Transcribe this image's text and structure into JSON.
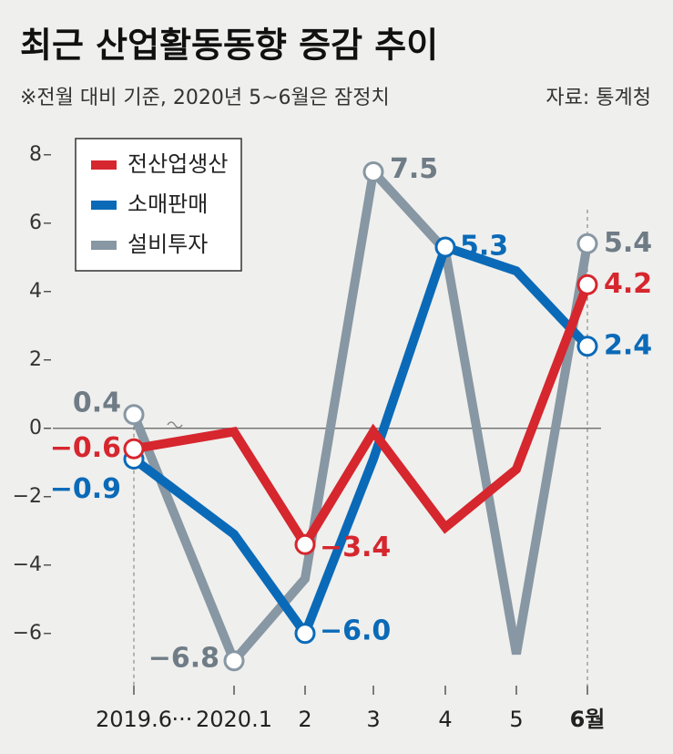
{
  "chart_data": {
    "type": "line",
    "title": "최근 산업활동동향 증감 추이",
    "subtitle": "※전월 대비 기준, 2020년 5~6월은 잠정치",
    "source": "자료: 통계청",
    "categories": [
      "2019.6",
      "2020.1",
      "2",
      "3",
      "4",
      "5",
      "6월"
    ],
    "axis_break_label": "···",
    "series": [
      {
        "name": "전산업생산",
        "color": "#d6262e",
        "values": [
          -0.6,
          -0.1,
          -3.4,
          -0.1,
          -2.9,
          -1.2,
          4.2
        ],
        "value_labels": [
          "−0.6",
          null,
          "−3.4",
          null,
          null,
          null,
          "4.2"
        ]
      },
      {
        "name": "소매판매",
        "color": "#0a6ab8",
        "values": [
          -0.9,
          -3.1,
          -6.0,
          -0.9,
          5.3,
          4.6,
          2.4
        ],
        "value_labels": [
          "−0.9",
          null,
          "−6.0",
          null,
          "5.3",
          null,
          "2.4"
        ]
      },
      {
        "name": "설비투자",
        "color": "#8797a3",
        "values": [
          0.4,
          -6.8,
          -4.4,
          7.5,
          5.2,
          -6.6,
          5.4
        ],
        "value_labels": [
          "0.4",
          "−6.8",
          null,
          "7.5",
          null,
          null,
          "5.4"
        ]
      }
    ],
    "ylim": [
      -7.5,
      8.5
    ],
    "yticks": [
      8,
      6,
      4,
      2,
      0,
      {
        "value": -2,
        "label": "−2"
      },
      {
        "value": -4,
        "label": "−4"
      },
      {
        "value": -6,
        "label": "−6"
      }
    ],
    "grid": false
  }
}
